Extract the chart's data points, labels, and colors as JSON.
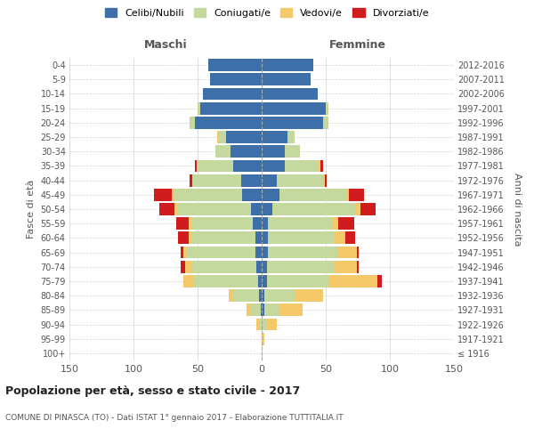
{
  "age_groups": [
    "100+",
    "95-99",
    "90-94",
    "85-89",
    "80-84",
    "75-79",
    "70-74",
    "65-69",
    "60-64",
    "55-59",
    "50-54",
    "45-49",
    "40-44",
    "35-39",
    "30-34",
    "25-29",
    "20-24",
    "15-19",
    "10-14",
    "5-9",
    "0-4"
  ],
  "birth_years": [
    "≤ 1916",
    "1917-1921",
    "1922-1926",
    "1927-1931",
    "1932-1936",
    "1937-1941",
    "1942-1946",
    "1947-1951",
    "1952-1956",
    "1957-1961",
    "1962-1966",
    "1967-1971",
    "1972-1976",
    "1977-1981",
    "1982-1986",
    "1987-1991",
    "1992-1996",
    "1997-2001",
    "2002-2006",
    "2007-2011",
    "2012-2016"
  ],
  "maschi": {
    "celibi": [
      0,
      0,
      0,
      1,
      2,
      3,
      4,
      5,
      5,
      7,
      8,
      15,
      16,
      22,
      24,
      28,
      52,
      48,
      46,
      40,
      42
    ],
    "coniugati": [
      0,
      0,
      2,
      7,
      20,
      50,
      50,
      54,
      50,
      48,
      58,
      54,
      38,
      28,
      12,
      6,
      4,
      2,
      0,
      0,
      0
    ],
    "vedovi": [
      0,
      0,
      2,
      4,
      4,
      8,
      6,
      2,
      2,
      2,
      2,
      1,
      0,
      1,
      0,
      1,
      0,
      0,
      0,
      0,
      0
    ],
    "divorziati": [
      0,
      0,
      0,
      0,
      0,
      0,
      3,
      2,
      8,
      10,
      12,
      14,
      2,
      1,
      0,
      0,
      0,
      0,
      0,
      0,
      0
    ]
  },
  "femmine": {
    "nubili": [
      0,
      0,
      0,
      2,
      2,
      4,
      4,
      5,
      5,
      5,
      8,
      14,
      12,
      18,
      18,
      20,
      48,
      50,
      44,
      38,
      40
    ],
    "coniugate": [
      0,
      0,
      4,
      12,
      24,
      48,
      52,
      55,
      52,
      50,
      65,
      52,
      36,
      26,
      12,
      6,
      4,
      2,
      0,
      0,
      0
    ],
    "vedove": [
      0,
      2,
      8,
      18,
      22,
      38,
      18,
      14,
      8,
      5,
      4,
      2,
      1,
      2,
      0,
      0,
      0,
      0,
      0,
      0,
      0
    ],
    "divorziate": [
      0,
      0,
      0,
      0,
      0,
      4,
      2,
      2,
      8,
      12,
      12,
      12,
      2,
      2,
      0,
      0,
      0,
      0,
      0,
      0,
      0
    ]
  },
  "colors": {
    "celibi": "#3d6fa8",
    "coniugati": "#c5d89d",
    "vedovi": "#f5c96a",
    "divorziati": "#d01c1c"
  },
  "title": "Popolazione per età, sesso e stato civile - 2017",
  "subtitle": "COMUNE DI PINASCA (TO) - Dati ISTAT 1° gennaio 2017 - Elaborazione TUTTITALIA.IT",
  "ylabel": "Fasce di età",
  "ylabel_right": "Anni di nascita",
  "header_maschi": "Maschi",
  "header_femmine": "Femmine",
  "xlim": 150,
  "background_color": "#ffffff",
  "grid_color": "#d0d0d0",
  "legend_labels": [
    "Celibi/Nubili",
    "Coniugati/e",
    "Vedovi/e",
    "Divorziati/e"
  ]
}
